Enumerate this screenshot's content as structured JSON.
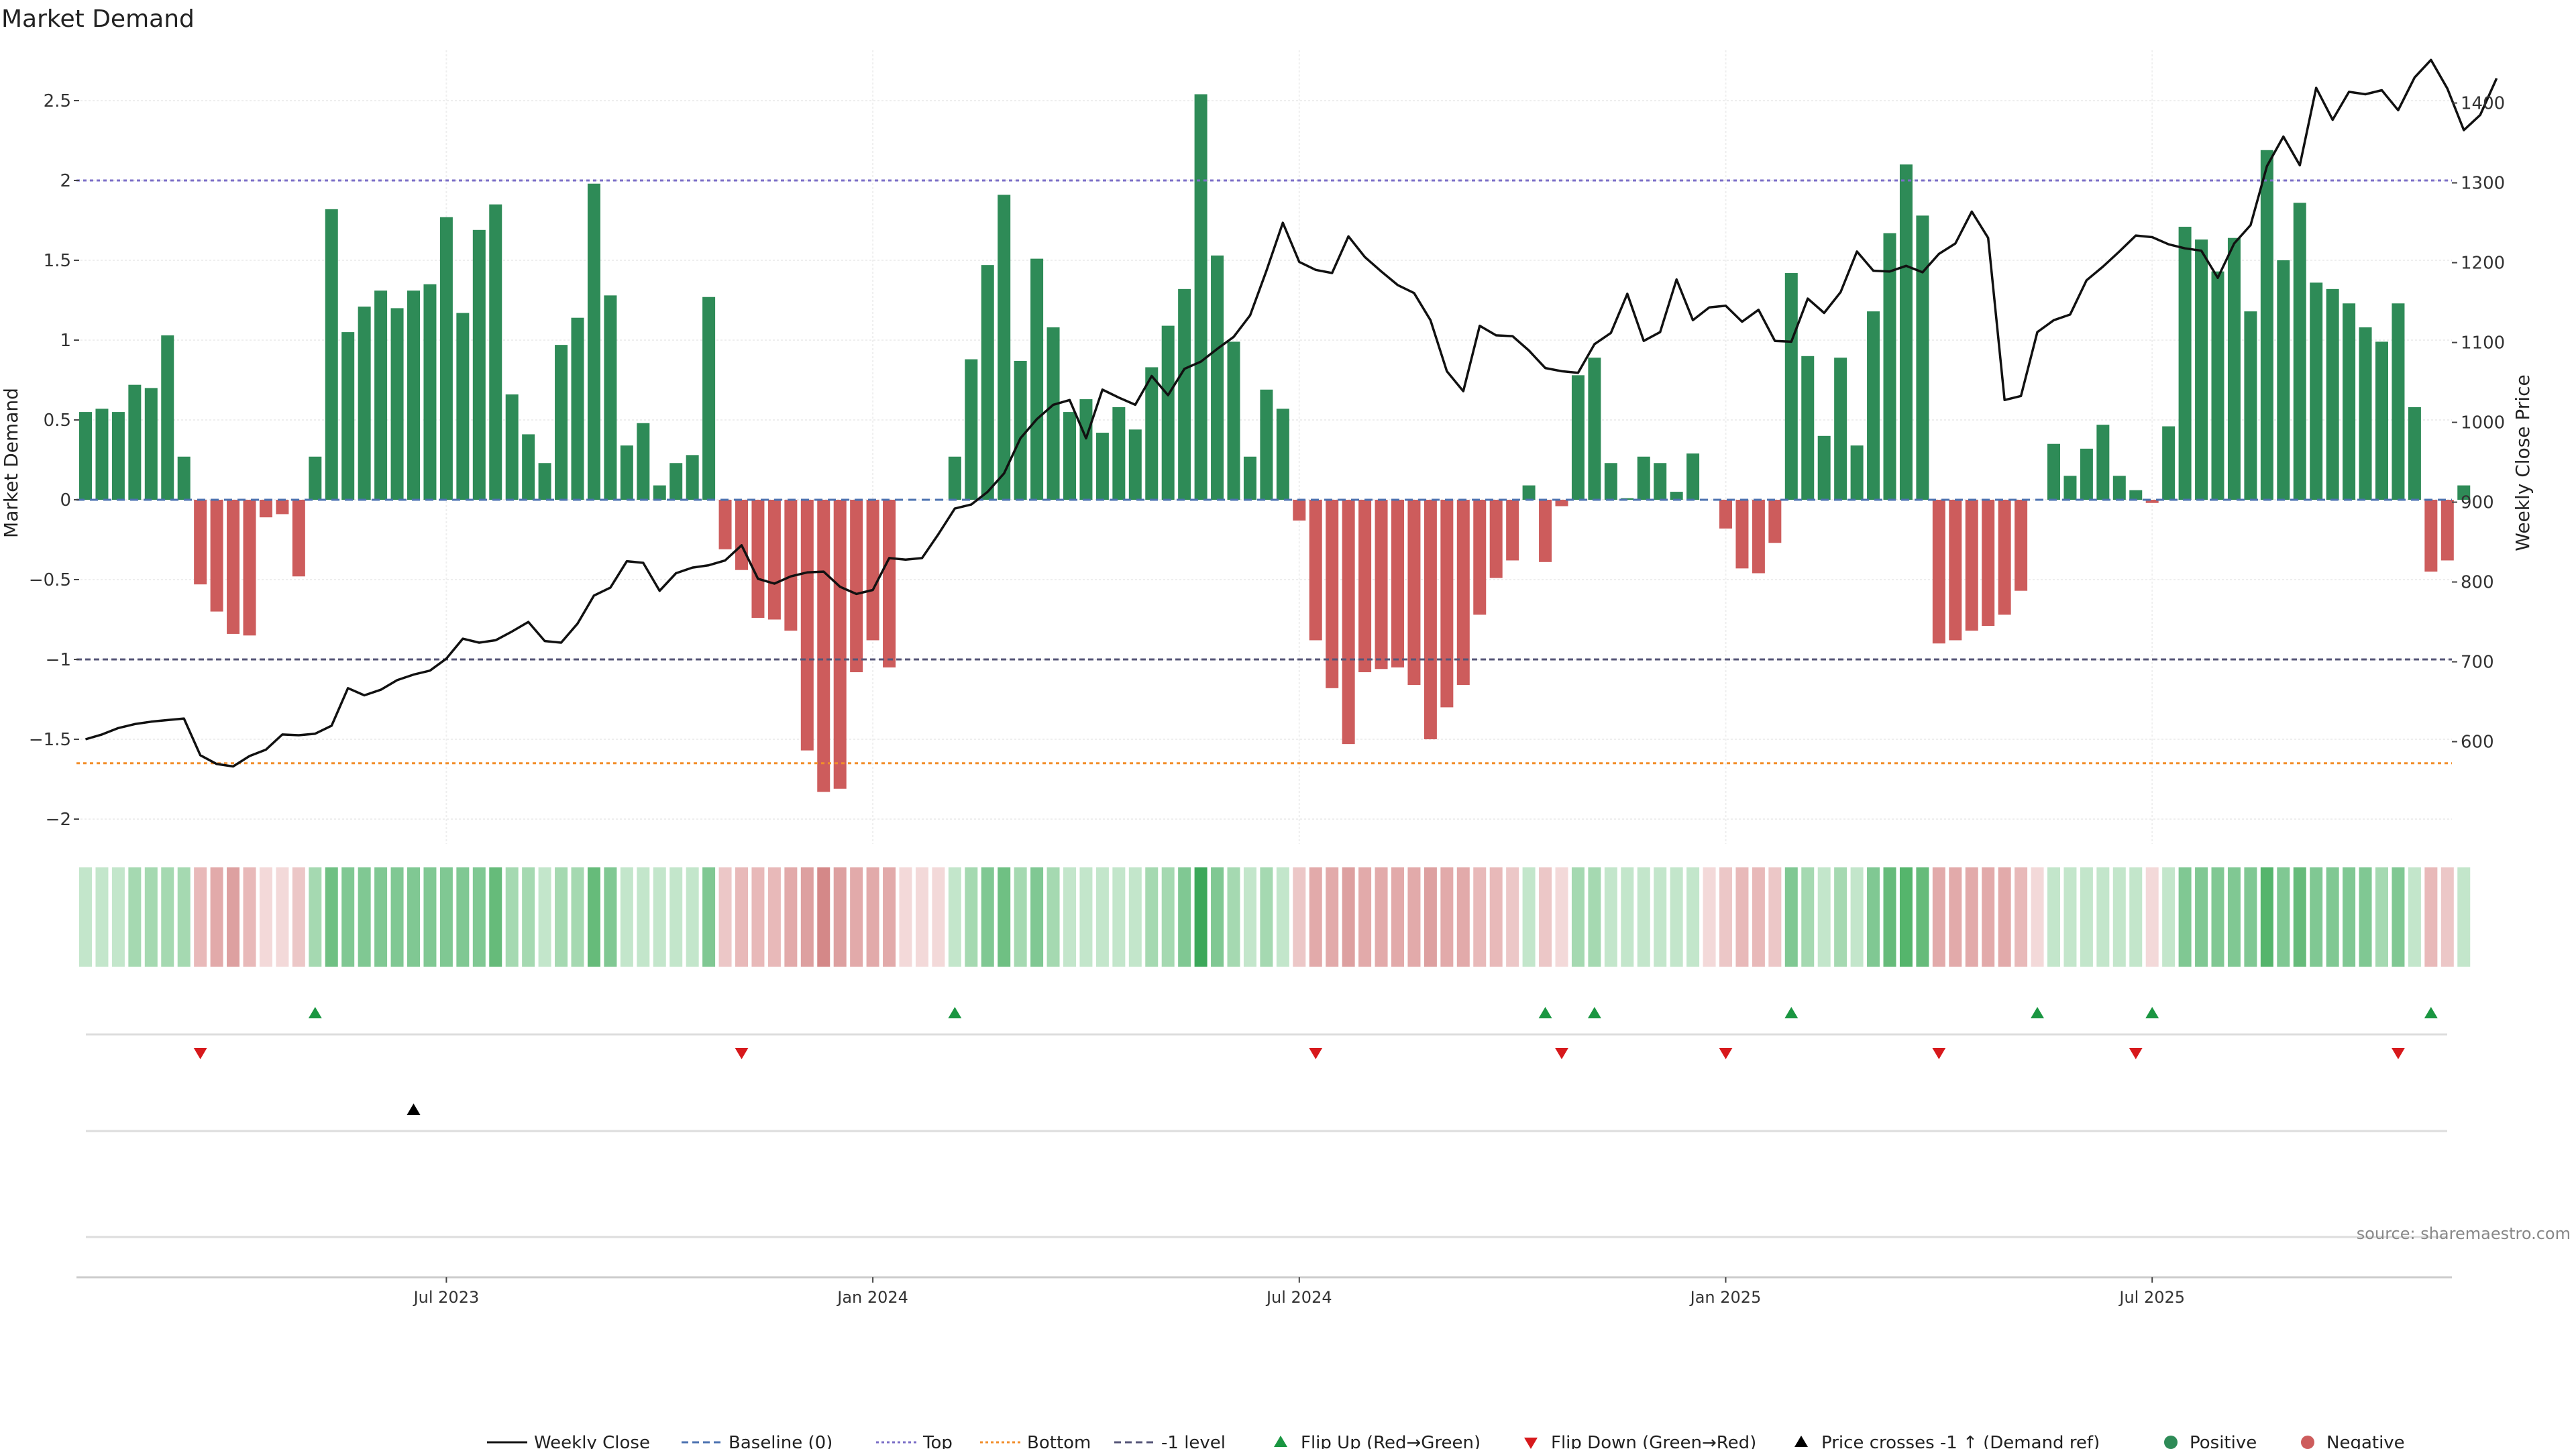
{
  "chart_data": {
    "type": "bar",
    "title": "Market Demand",
    "ylabel": "Market Demand",
    "y2label": "Weekly Close Price",
    "ylim": [
      -2.15,
      2.6
    ],
    "y2lim": [
      520,
      1480
    ],
    "yticks": [
      "2.5",
      "2",
      "1.5",
      "1",
      "0.5",
      "0",
      "−0.5",
      "−1",
      "−1.5",
      "−2"
    ],
    "ytick_values": [
      2.5,
      2,
      1.5,
      1,
      0.5,
      0,
      -0.5,
      -1,
      -1.5,
      -2
    ],
    "y2ticks": [
      "1400",
      "1300",
      "1200",
      "1100",
      "1000",
      "900",
      "800",
      "700",
      "600"
    ],
    "y2tick_values": [
      1400,
      1300,
      1200,
      1100,
      1000,
      900,
      800,
      700,
      600
    ],
    "xticks": [
      "Jul 2023",
      "Jan 2024",
      "Jul 2024",
      "Jan 2025",
      "Jul 2025"
    ],
    "xtick_weeks": [
      22,
      48,
      74,
      100,
      126
    ],
    "grid": true,
    "reference_lines": {
      "top": 2.0,
      "bottom": -1.65,
      "minus_one": -1.0,
      "baseline": 0
    },
    "demand": [
      0.55,
      0.57,
      0.55,
      0.72,
      0.7,
      1.03,
      0.27,
      -0.53,
      -0.7,
      -0.84,
      -0.85,
      -0.11,
      -0.09,
      -0.48,
      0.27,
      1.82,
      1.05,
      1.21,
      1.31,
      1.2,
      1.31,
      1.35,
      1.77,
      1.17,
      1.69,
      1.85,
      0.66,
      0.41,
      0.23,
      0.97,
      1.14,
      1.98,
      1.28,
      0.34,
      0.48,
      0.09,
      0.23,
      0.28,
      1.27,
      -0.31,
      -0.44,
      -0.74,
      -0.75,
      -0.82,
      -1.57,
      -1.83,
      -1.81,
      -1.08,
      -0.88,
      -1.05,
      0,
      0,
      0,
      0.27,
      0.88,
      1.47,
      1.91,
      0.87,
      1.51,
      1.08,
      0.55,
      0.63,
      0.42,
      0.58,
      0.44,
      0.83,
      1.09,
      1.32,
      2.54,
      1.53,
      0.99,
      0.27,
      0.69,
      0.57,
      -0.13,
      -0.88,
      -1.18,
      -1.53,
      -1.08,
      -1.06,
      -1.05,
      -1.16,
      -1.5,
      -1.3,
      -1.16,
      -0.72,
      -0.49,
      -0.38,
      0.09,
      -0.39,
      -0.04,
      0.78,
      0.89,
      0.23,
      0.01,
      0.27,
      0.23,
      0.05,
      0.29,
      0,
      -0.18,
      -0.43,
      -0.46,
      -0.27,
      1.42,
      0.9,
      0.4,
      0.89,
      0.34,
      1.18,
      1.67,
      2.1,
      1.78,
      -0.9,
      -0.88,
      -0.82,
      -0.79,
      -0.72,
      -0.57,
      0,
      0.35,
      0.15,
      0.32,
      0.47,
      0.15,
      0.06,
      -0.02,
      0.46,
      1.71,
      1.63,
      1.43,
      1.64,
      1.18,
      2.19,
      1.5,
      1.86,
      1.36,
      1.32,
      1.23,
      1.08,
      0.99,
      1.23,
      0.58,
      -0.45,
      -0.38,
      0.09
    ],
    "weekly_close": [
      603,
      609,
      617,
      622,
      625,
      627,
      629,
      583,
      572,
      569,
      582,
      590,
      609,
      608,
      610,
      620,
      667,
      658,
      665,
      677,
      684,
      689,
      704,
      729,
      724,
      727,
      738,
      750,
      726,
      724,
      748,
      783,
      793,
      826,
      824,
      789,
      811,
      818,
      821,
      827,
      846,
      804,
      798,
      807,
      812,
      813,
      794,
      785,
      790,
      830,
      828,
      830,
      860,
      892,
      897,
      913,
      936,
      980,
      1004,
      1022,
      1028,
      980,
      1041,
      1031,
      1022,
      1058,
      1034,
      1067,
      1076,
      1092,
      1107,
      1134,
      1190,
      1250,
      1201,
      1191,
      1187,
      1233,
      1207,
      1189,
      1172,
      1162,
      1128,
      1064,
      1039,
      1121,
      1109,
      1108,
      1090,
      1068,
      1064,
      1062,
      1098,
      1112,
      1161,
      1102,
      1113,
      1179,
      1128,
      1144,
      1146,
      1126,
      1141,
      1102,
      1101,
      1155,
      1137,
      1163,
      1214,
      1190,
      1189,
      1196,
      1188,
      1211,
      1224,
      1264,
      1231,
      1028,
      1033,
      1113,
      1128,
      1135,
      1178,
      1195,
      1214,
      1234,
      1232,
      1223,
      1218,
      1215,
      1181,
      1224,
      1247,
      1321,
      1358,
      1322,
      1419,
      1379,
      1414,
      1411,
      1416,
      1391,
      1432,
      1454,
      1418,
      1366,
      1385,
      1431
    ],
    "heat_colors": [
      "#c3e6cb",
      "#c3e6cb",
      "#c3e6cb",
      "#a5d9b1",
      "#a5d9b1",
      "#a5d9b1",
      "#a5d9b1",
      "#e8b9b9",
      "#e2aaaa",
      "#dda0a0",
      "#e8b9b9",
      "#f3d9d9",
      "#f3d9d9",
      "#ecc7c7",
      "#a5d9b1",
      "#6fc083",
      "#80c893",
      "#80c893",
      "#80c893",
      "#80c893",
      "#80c893",
      "#80c893",
      "#80c893",
      "#80c893",
      "#80c893",
      "#66bb7a",
      "#a5d9b1",
      "#a5d9b1",
      "#c3e6cb",
      "#a5d9b1",
      "#a5d9b1",
      "#66bb7a",
      "#80c893",
      "#c3e6cb",
      "#c3e6cb",
      "#c3e6cb",
      "#c3e6cb",
      "#c3e6cb",
      "#80c893",
      "#ecc7c7",
      "#e8b9b9",
      "#e8b9b9",
      "#e8b9b9",
      "#e2aaaa",
      "#dda0a0",
      "#d48888",
      "#dda0a0",
      "#e2aaaa",
      "#e2aaaa",
      "#e2aaaa",
      "#f3d9d9",
      "#f3d9d9",
      "#f3d9d9",
      "#c3e6cb",
      "#a5d9b1",
      "#80c893",
      "#6fc083",
      "#a5d9b1",
      "#80c893",
      "#a5d9b1",
      "#c3e6cb",
      "#c3e6cb",
      "#c3e6cb",
      "#c3e6cb",
      "#c3e6cb",
      "#a5d9b1",
      "#a5d9b1",
      "#80c893",
      "#3ca85a",
      "#80c893",
      "#a5d9b1",
      "#c3e6cb",
      "#a5d9b1",
      "#c3e6cb",
      "#ecc7c7",
      "#e2aaaa",
      "#e2aaaa",
      "#dda0a0",
      "#e2aaaa",
      "#e2aaaa",
      "#e2aaaa",
      "#e2aaaa",
      "#dda0a0",
      "#e2aaaa",
      "#e2aaaa",
      "#e8b9b9",
      "#e8b9b9",
      "#ecc7c7",
      "#c3e6cb",
      "#ecc7c7",
      "#f3d9d9",
      "#a5d9b1",
      "#a5d9b1",
      "#c3e6cb",
      "#c3e6cb",
      "#c3e6cb",
      "#c3e6cb",
      "#c3e6cb",
      "#c3e6cb",
      "#f3d9d9",
      "#ecc7c7",
      "#e8b9b9",
      "#e8b9b9",
      "#ecc7c7",
      "#80c893",
      "#a5d9b1",
      "#c3e6cb",
      "#a5d9b1",
      "#c3e6cb",
      "#80c893",
      "#66bb7a",
      "#55b56c",
      "#66bb7a",
      "#e2aaaa",
      "#e2aaaa",
      "#e2aaaa",
      "#e2aaaa",
      "#e2aaaa",
      "#e8b9b9",
      "#f3d9d9",
      "#c3e6cb",
      "#c3e6cb",
      "#c3e6cb",
      "#c3e6cb",
      "#c3e6cb",
      "#c3e6cb",
      "#f3d9d9",
      "#c3e6cb",
      "#80c893",
      "#80c893",
      "#80c893",
      "#80c893",
      "#80c893",
      "#55b56c",
      "#80c893",
      "#66bb7a",
      "#80c893",
      "#80c893",
      "#80c893",
      "#80c893",
      "#a5d9b1",
      "#80c893",
      "#c3e6cb",
      "#e8b9b9",
      "#ecc7c7",
      "#c3e6cb"
    ],
    "flip_up_weeks": [
      14,
      53,
      89,
      92,
      104,
      119,
      126,
      143
    ],
    "flip_down_weeks": [
      7,
      40,
      75,
      90,
      100,
      113,
      125,
      141
    ],
    "price_cross_weeks": [
      20
    ],
    "colors": {
      "positive": "#2e8b57",
      "negative": "#cd5c5c",
      "line": "#111111",
      "flip_up": "#1a9641",
      "flip_down": "#d7191c",
      "top": "#7b6fc7",
      "bottom": "#f28e2b",
      "minus_one": "#555577",
      "baseline": "#4c72b0"
    },
    "source": "source: sharemaestro.com"
  },
  "legend": [
    {
      "label": "Weekly Close",
      "icon": "solid-line"
    },
    {
      "label": "Baseline (0)",
      "icon": "dashed-line"
    },
    {
      "label": "Top",
      "icon": "dotted-line"
    },
    {
      "label": "Bottom",
      "icon": "dotted-line"
    },
    {
      "label": "-1 level",
      "icon": "dashed-line"
    },
    {
      "label": "Flip Up (Red→Green)",
      "icon": "triangle-up"
    },
    {
      "label": "Flip Down (Green→Red)",
      "icon": "triangle-down"
    },
    {
      "label": "Price crosses -1 ↑ (Demand ref)",
      "icon": "triangle-up"
    },
    {
      "label": "Positive",
      "icon": "circle"
    },
    {
      "label": "Negative",
      "icon": "circle"
    }
  ]
}
